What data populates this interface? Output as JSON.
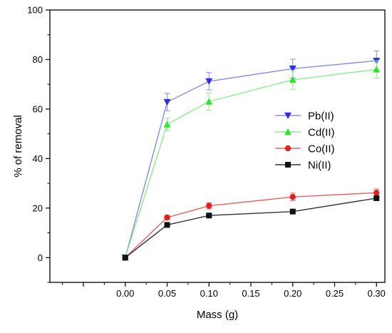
{
  "chart_data": {
    "type": "line",
    "title": "",
    "xlabel": "Mass (g)",
    "ylabel": "% of removal",
    "xlim": [
      -0.09,
      0.31
    ],
    "ylim": [
      -10,
      100
    ],
    "x_ticks": [
      0.0,
      0.05,
      0.1,
      0.15,
      0.2,
      0.25,
      0.3
    ],
    "x_tick_labels": [
      "0.00",
      "0.05",
      "0.10",
      "0.15",
      "0.20",
      "0.25",
      "0.30"
    ],
    "y_ticks": [
      0,
      20,
      40,
      60,
      80,
      100
    ],
    "y_tick_labels": [
      "0",
      "20",
      "40",
      "60",
      "80",
      "100"
    ],
    "x": [
      0.0,
      0.05,
      0.1,
      0.2,
      0.3
    ],
    "legend_position": "right-center",
    "grid": false,
    "series": [
      {
        "name": "Pb(II)",
        "color": "#2e2ee6",
        "line_color": "#8a8aee",
        "marker": "triangle-down",
        "values": [
          0,
          62.8,
          71.2,
          76.3,
          79.5
        ],
        "errors": [
          0,
          3.5,
          3.5,
          3.8,
          4.0
        ]
      },
      {
        "name": "Cd(II)",
        "color": "#2ee62e",
        "line_color": "#8aee8a",
        "marker": "triangle-up",
        "values": [
          0,
          53.8,
          63.0,
          71.8,
          76.0
        ],
        "errors": [
          0,
          2.5,
          3.5,
          3.8,
          3.5
        ]
      },
      {
        "name": "Co(II)",
        "color": "#e62020",
        "line_color": "#ee6060",
        "marker": "circle",
        "values": [
          0,
          16.2,
          20.9,
          24.5,
          26.2
        ],
        "errors": [
          0,
          0.8,
          1.2,
          1.5,
          1.5
        ]
      },
      {
        "name": "Ni(II)",
        "color": "#111111",
        "line_color": "#333333",
        "marker": "square",
        "values": [
          0,
          13.2,
          17.0,
          18.6,
          24.0
        ],
        "errors": [
          0,
          0.5,
          0.6,
          0.8,
          0.8
        ]
      }
    ]
  }
}
